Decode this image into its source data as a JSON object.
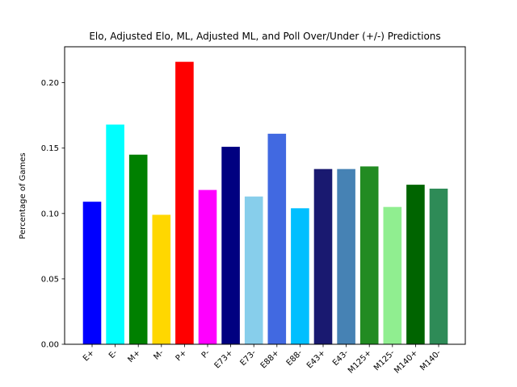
{
  "chart_data": {
    "type": "bar",
    "title": "Elo, Adjusted Elo, ML, Adjusted ML, and Poll Over/Under (+/-) Predictions",
    "xlabel": "",
    "ylabel": "Percentage of Games",
    "ylim": [
      0,
      0.2275
    ],
    "yticks": [
      "0.00",
      "0.05",
      "0.10",
      "0.15",
      "0.20"
    ],
    "grid": false,
    "categories": [
      "E+",
      "E-",
      "M+",
      "M-",
      "P+",
      "P-",
      "E73+",
      "E73-",
      "E88+",
      "E88-",
      "E43+",
      "E43-",
      "M125+",
      "M125-",
      "M140+",
      "M140-"
    ],
    "values": [
      0.109,
      0.168,
      0.145,
      0.099,
      0.216,
      0.118,
      0.151,
      0.113,
      0.161,
      0.104,
      0.134,
      0.134,
      0.136,
      0.105,
      0.122,
      0.119
    ],
    "colors": [
      "#0000ff",
      "#00ffff",
      "#008000",
      "#ffd700",
      "#ff0000",
      "#ff00ff",
      "#000080",
      "#87ceeb",
      "#4169e1",
      "#00bfff",
      "#191970",
      "#4682b4",
      "#228b22",
      "#90ee90",
      "#006400",
      "#2e8b57"
    ]
  }
}
